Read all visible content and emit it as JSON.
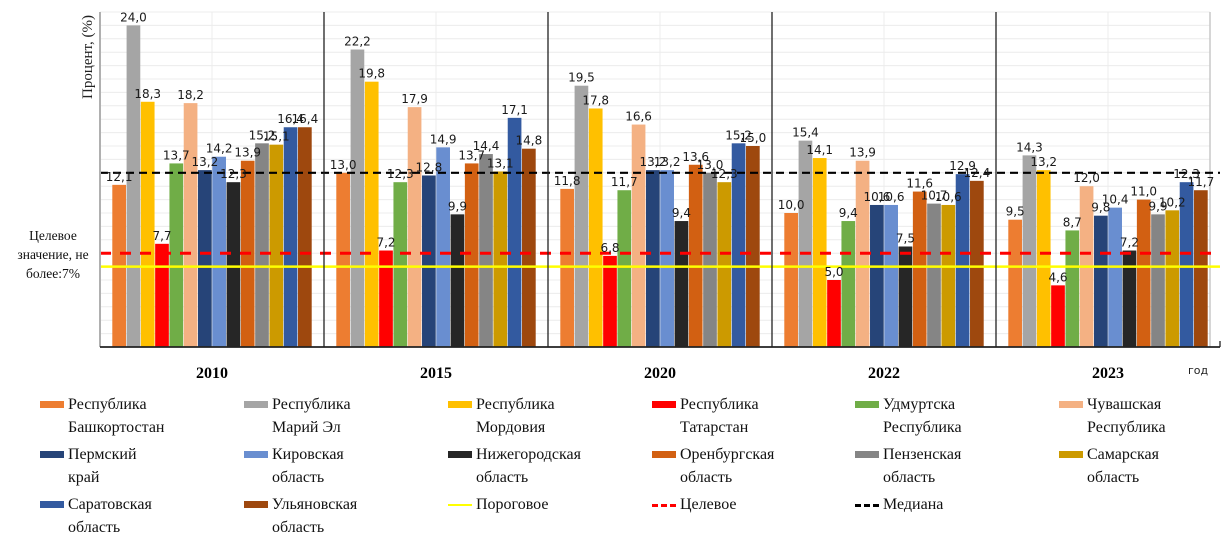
{
  "chart_data": {
    "type": "bar",
    "title": "",
    "ylabel": "Процент, (%)",
    "xlabel": "год",
    "ylim": [
      0,
      25
    ],
    "grid": true,
    "legend_position": "bottom",
    "categories": [
      "2010",
      "2015",
      "2020",
      "2022",
      "2023"
    ],
    "series": [
      {
        "name": "Республика\nБашкортостан",
        "color": "#ED7D31",
        "values": [
          12.1,
          13.0,
          11.8,
          10.0,
          9.5
        ]
      },
      {
        "name": "Республика\nМарий Эл",
        "color": "#A5A5A5",
        "values": [
          24.0,
          22.2,
          19.5,
          15.4,
          14.3
        ]
      },
      {
        "name": "Республика\nМордовия",
        "color": "#FFC000",
        "values": [
          18.3,
          19.8,
          17.8,
          14.1,
          13.2
        ]
      },
      {
        "name": "Республика\nТатарстан",
        "color": "#FF0000",
        "values": [
          7.7,
          7.2,
          6.8,
          5.0,
          4.6
        ]
      },
      {
        "name": "Удмуртска\nРеспублика",
        "color": "#70AD47",
        "values": [
          13.7,
          12.3,
          11.7,
          9.4,
          8.7
        ]
      },
      {
        "name": "Чувашская\nРеспублика",
        "color": "#F4B183",
        "values": [
          18.2,
          17.9,
          16.6,
          13.9,
          12.0
        ]
      },
      {
        "name": "Пермский\nкрай",
        "color": "#264478",
        "values": [
          13.2,
          12.8,
          13.2,
          10.6,
          9.8
        ]
      },
      {
        "name": "Кировская\nобласть",
        "color": "#698ED0",
        "values": [
          14.2,
          14.9,
          13.2,
          10.6,
          10.4
        ]
      },
      {
        "name": "Нижегородская\nобласть",
        "color": "#262626",
        "values": [
          12.3,
          9.9,
          9.4,
          7.5,
          7.2
        ]
      },
      {
        "name": "Оренбургская\nобласть",
        "color": "#D26012",
        "values": [
          13.9,
          13.7,
          13.6,
          11.6,
          11.0
        ]
      },
      {
        "name": "Пензенская\nобласть",
        "color": "#858585",
        "values": [
          15.2,
          14.4,
          13.0,
          10.7,
          9.9
        ]
      },
      {
        "name": "Самарская\nобласть",
        "color": "#CC9A00",
        "values": [
          15.1,
          13.1,
          12.3,
          10.6,
          10.2
        ]
      },
      {
        "name": "Саратовская\nобласть",
        "color": "#335AA0",
        "values": [
          16.4,
          17.1,
          15.2,
          12.9,
          12.3
        ]
      },
      {
        "name": "Ульяновская\nобласть",
        "color": "#9E480E",
        "values": [
          16.4,
          14.8,
          15.0,
          12.4,
          11.7
        ]
      }
    ],
    "reference_lines": [
      {
        "name": "Пороговое",
        "value": 6.0,
        "color": "#FFFF00",
        "style": "solid"
      },
      {
        "name": "Целевое",
        "value": 7.0,
        "color": "#FF0000",
        "style": "dashed"
      },
      {
        "name": "Медиана",
        "value": 13.0,
        "color": "#000000",
        "style": "dashed"
      }
    ],
    "annotation": "Целевое значение, не более:7%",
    "decimal_separator": ","
  },
  "legend": {
    "items": [
      {
        "label": "Республика\nБашкортостан",
        "kind": "swatch",
        "color": "#ED7D31"
      },
      {
        "label": "Республика\nМарий Эл",
        "kind": "swatch",
        "color": "#A5A5A5"
      },
      {
        "label": "Республика\nМордовия",
        "kind": "swatch",
        "color": "#FFC000"
      },
      {
        "label": "Республика\nТатарстан",
        "kind": "swatch",
        "color": "#FF0000"
      },
      {
        "label": "Удмуртска\nРеспублика",
        "kind": "swatch",
        "color": "#70AD47"
      },
      {
        "label": "Чувашская\nРеспублика",
        "kind": "swatch",
        "color": "#F4B183"
      },
      {
        "label": "Пермский\nкрай",
        "kind": "swatch",
        "color": "#264478"
      },
      {
        "label": "Кировская\nобласть",
        "kind": "swatch",
        "color": "#698ED0"
      },
      {
        "label": "Нижегородская\nобласть",
        "kind": "swatch",
        "color": "#262626"
      },
      {
        "label": "Оренбургская\nобласть",
        "kind": "swatch",
        "color": "#D26012"
      },
      {
        "label": "Пензенская\nобласть",
        "kind": "swatch",
        "color": "#858585"
      },
      {
        "label": "Самарская\nобласть",
        "kind": "swatch",
        "color": "#CC9A00"
      },
      {
        "label": "Саратовская\nобласть",
        "kind": "swatch",
        "color": "#335AA0"
      },
      {
        "label": "Ульяновская\nобласть",
        "kind": "swatch",
        "color": "#9E480E"
      },
      {
        "label": "Пороговое",
        "kind": "solid-line",
        "color": "#FFFF00"
      },
      {
        "label": "Целевое",
        "kind": "dashed-line",
        "color": "#FF0000"
      },
      {
        "label": "Медиана",
        "kind": "dashed-line",
        "color": "#000000"
      }
    ]
  }
}
